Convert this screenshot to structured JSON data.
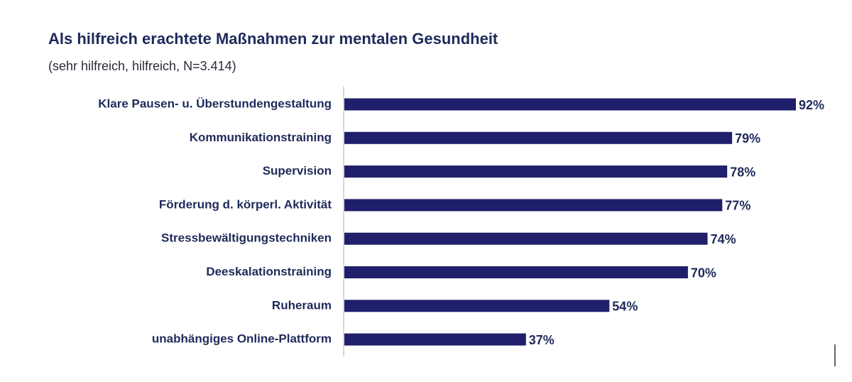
{
  "chart_data": {
    "type": "bar",
    "orientation": "horizontal",
    "title": "Als hilfreich erachtete Maßnahmen zur mentalen Gesundheit",
    "subtitle": "(sehr hilfreich, hilfreich, N=3.414)",
    "categories": [
      "Klare Pausen- u. Überstundengestaltung",
      "Kommunikationstraining",
      "Supervision",
      "Förderung d. körperl. Aktivität",
      "Stressbewältigungstechniken",
      "Deeskalationstraining",
      "Ruheraum",
      "unabhängiges Online-Plattform"
    ],
    "values": [
      92,
      79,
      78,
      77,
      74,
      70,
      54,
      37
    ],
    "value_labels": [
      "92%",
      "79%",
      "78%",
      "77%",
      "74%",
      "70%",
      "54%",
      "37%"
    ],
    "color": "#1f1f6b"
  }
}
